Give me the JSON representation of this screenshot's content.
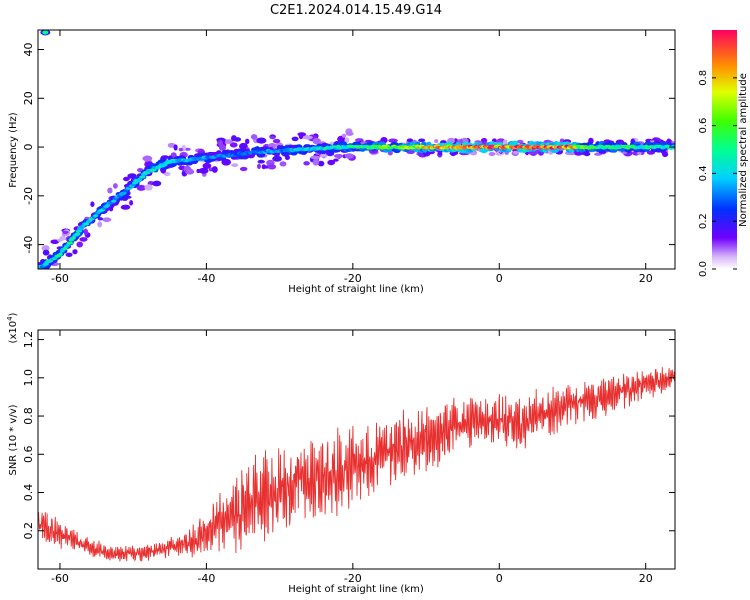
{
  "page": {
    "title": "C2E1.2024.014.15.49.G14"
  },
  "colorbar": {
    "label": "Normalized spectral amplitude",
    "ticks": [
      "0.0",
      "0.2",
      "0.4",
      "0.6",
      "0.8"
    ],
    "tick_values": [
      0.0,
      0.2,
      0.4,
      0.6,
      0.8
    ],
    "range": [
      0,
      1
    ]
  },
  "chart_data": [
    {
      "type": "heatmap",
      "title": "",
      "xlabel": "Height of straight line (km)",
      "ylabel": "Frequency (Hz)",
      "xlim": [
        -63,
        24
      ],
      "ylim": [
        -50,
        48
      ],
      "x_ticks": [
        -60,
        -40,
        -20,
        0,
        20
      ],
      "x_tick_labels": [
        "-60",
        "-40",
        "-20",
        "0",
        "20"
      ],
      "y_ticks": [
        -40,
        -20,
        0,
        20,
        40
      ],
      "y_tick_labels": [
        "-40",
        "-20",
        "0",
        "20",
        "40"
      ],
      "ridge": {
        "x": [
          -63,
          -60,
          -57,
          -54,
          -51,
          -48,
          -45,
          -42,
          -39,
          -36,
          -33,
          -30,
          -27,
          -24,
          -21,
          -18,
          -15,
          -12,
          -9,
          -6,
          -3,
          0,
          3,
          6,
          9,
          12,
          15,
          18,
          21,
          24
        ],
        "y": [
          -50,
          -44,
          -33,
          -25,
          -18,
          -10,
          -6,
          -5,
          -4,
          -3,
          -2,
          -1.5,
          -1,
          -0.5,
          0,
          0,
          0,
          0,
          0,
          0,
          0,
          0,
          0,
          0,
          0,
          0,
          0,
          0,
          0,
          0
        ],
        "amplitude": [
          0.35,
          0.5,
          0.45,
          0.4,
          0.35,
          0.45,
          0.45,
          0.4,
          0.35,
          0.3,
          0.35,
          0.35,
          0.4,
          0.45,
          0.5,
          0.6,
          0.65,
          0.7,
          0.85,
          0.9,
          0.95,
          0.9,
          0.95,
          0.95,
          0.95,
          0.6,
          0.55,
          0.55,
          0.5,
          0.45
        ]
      },
      "isolated_patch": {
        "x": -62,
        "y": 47,
        "amplitude": 0.5
      },
      "grid": false
    },
    {
      "type": "line",
      "title": "",
      "xlabel": "Height of straight line (km)",
      "ylabel": "SNR (10 * v/v)",
      "y_multiplier": "(x10",
      "y_multiplier_exp": "4",
      "y_multiplier_close": ")",
      "xlim": [
        -63,
        24
      ],
      "ylim": [
        0,
        1.25
      ],
      "x_ticks": [
        -60,
        -40,
        -20,
        0,
        20
      ],
      "x_tick_labels": [
        "-60",
        "-40",
        "-20",
        "0",
        "20"
      ],
      "y_ticks": [
        0.2,
        0.4,
        0.6,
        0.8,
        1.0,
        1.2
      ],
      "y_tick_labels": [
        "0.2",
        "0.4",
        "0.6",
        "0.8",
        "1.0",
        "1.2"
      ],
      "series": [
        {
          "color": "#e83030",
          "x": [
            -63,
            -61,
            -59,
            -57,
            -55,
            -53,
            -51,
            -49,
            -47,
            -45,
            -43,
            -41,
            -39,
            -37,
            -35,
            -33,
            -31,
            -29,
            -27,
            -25,
            -23,
            -21,
            -19,
            -17,
            -15,
            -13,
            -11,
            -9,
            -7,
            -5,
            -3,
            -1,
            1,
            3,
            5,
            7,
            9,
            11,
            13,
            15,
            17,
            19,
            21,
            23,
            24
          ],
          "y_mid": [
            0.25,
            0.2,
            0.17,
            0.13,
            0.1,
            0.08,
            0.08,
            0.08,
            0.09,
            0.11,
            0.13,
            0.17,
            0.22,
            0.27,
            0.32,
            0.36,
            0.4,
            0.43,
            0.46,
            0.48,
            0.5,
            0.52,
            0.55,
            0.58,
            0.62,
            0.66,
            0.67,
            0.68,
            0.72,
            0.75,
            0.77,
            0.78,
            0.78,
            0.75,
            0.8,
            0.82,
            0.85,
            0.87,
            0.88,
            0.9,
            0.93,
            0.95,
            0.98,
            1.0,
            1.02
          ],
          "y_amp": [
            0.1,
            0.08,
            0.07,
            0.05,
            0.05,
            0.04,
            0.04,
            0.04,
            0.05,
            0.05,
            0.07,
            0.1,
            0.14,
            0.18,
            0.22,
            0.24,
            0.24,
            0.24,
            0.24,
            0.23,
            0.22,
            0.21,
            0.2,
            0.2,
            0.2,
            0.19,
            0.18,
            0.17,
            0.16,
            0.15,
            0.14,
            0.14,
            0.14,
            0.14,
            0.13,
            0.12,
            0.12,
            0.11,
            0.1,
            0.1,
            0.09,
            0.08,
            0.08,
            0.07,
            0.07
          ]
        }
      ],
      "grid": false
    }
  ]
}
